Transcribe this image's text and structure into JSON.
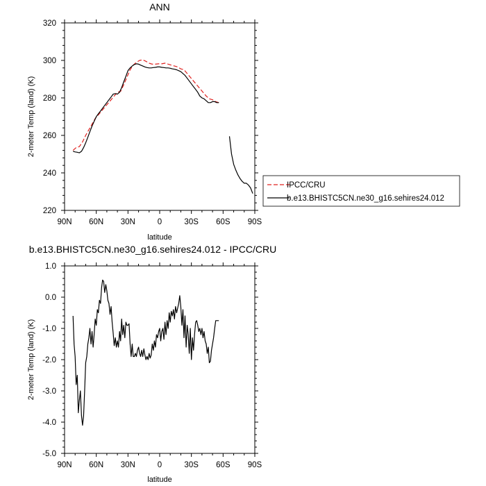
{
  "chart_data": [
    {
      "type": "line",
      "title": "ANN",
      "xlabel": "latitude",
      "ylabel": "2-meter Temp (land) (K)",
      "xlim": [
        90,
        -90
      ],
      "ylim": [
        220,
        320
      ],
      "yticks": [
        "220",
        "240",
        "260",
        "280",
        "300",
        "320"
      ],
      "xticks": [
        "90N",
        "60N",
        "30N",
        "0",
        "30S",
        "60S",
        "90S"
      ],
      "xtick_values": [
        90,
        60,
        30,
        0,
        -30,
        -60,
        -90
      ],
      "ytick_values": [
        220,
        240,
        260,
        280,
        300,
        320
      ],
      "grid": false,
      "legend": "right, outside plot",
      "series": [
        {
          "name": "IPCC/CRU",
          "color": "#e0201e",
          "dash": "dashed",
          "x": [
            82,
            79,
            76,
            73,
            70,
            67,
            64,
            61,
            58,
            55,
            52,
            49,
            46,
            43,
            40,
            37,
            34,
            31,
            28,
            25,
            22,
            19,
            16,
            13,
            10,
            7,
            4,
            1,
            -2,
            -5,
            -8,
            -11,
            -14,
            -17,
            -20,
            -23,
            -26,
            -29,
            -32,
            -35,
            -38,
            -41,
            -44,
            -47,
            -50,
            -53,
            -56
          ],
          "y": [
            252,
            253.5,
            254,
            256.5,
            260,
            263,
            266,
            269,
            271,
            273,
            275,
            277,
            279,
            281,
            283,
            283.5,
            287,
            291,
            295,
            297.5,
            299,
            300,
            300.3,
            299.5,
            298.5,
            298,
            298,
            298.2,
            298.2,
            298.5,
            298,
            297.5,
            297,
            296.5,
            295.5,
            295,
            293,
            291,
            289,
            287,
            285,
            283,
            281,
            279.5,
            279,
            278,
            277.5
          ]
        },
        {
          "name": "b.e13.BHISTC5CN.ne30_g16.sehires24.012",
          "color": "#000000",
          "dash": "solid",
          "x": [
            82,
            80,
            78,
            76,
            74,
            72,
            70,
            68,
            66,
            64,
            62,
            60,
            58,
            56,
            54,
            52,
            50,
            48,
            46,
            44,
            42,
            40,
            38,
            36,
            34,
            32,
            30,
            28,
            26,
            24,
            22,
            20,
            18,
            16,
            14,
            12,
            10,
            8,
            6,
            4,
            2,
            0,
            -2,
            -4,
            -6,
            -8,
            -10,
            -12,
            -14,
            -16,
            -18,
            -20,
            -22,
            -24,
            -26,
            -28,
            -30,
            -32,
            -34,
            -36,
            -38,
            -40,
            -42,
            -44,
            -46,
            -48,
            -50,
            -52,
            -54,
            -56,
            null,
            -66,
            -68,
            -70,
            -72,
            -74,
            -76,
            -78,
            -80,
            -82,
            -84,
            -86,
            -88
          ],
          "y": [
            251.5,
            251.2,
            251,
            250.7,
            251.5,
            253.5,
            256,
            259,
            262,
            265,
            267.5,
            270,
            271.5,
            273,
            274.5,
            276,
            277.5,
            279,
            280.5,
            282,
            282.3,
            282,
            283,
            285.5,
            288.5,
            291.5,
            294.5,
            296,
            297,
            297.8,
            298.2,
            298,
            297.5,
            297,
            296.5,
            296.2,
            296,
            296,
            296.2,
            296.3,
            296.5,
            296.5,
            296.3,
            296.2,
            296,
            296,
            295.8,
            295.5,
            295.3,
            295,
            294.5,
            294,
            293,
            292,
            290.5,
            289,
            287.5,
            286,
            284.5,
            283,
            281,
            280,
            279.5,
            278.5,
            277.5,
            277.5,
            278,
            278,
            277.5,
            277.5,
            null,
            259.5,
            250,
            244.5,
            241.5,
            239,
            237,
            235.5,
            234.5,
            234.5,
            233.5,
            232,
            229
          ]
        }
      ]
    },
    {
      "type": "line",
      "title": "b.e13.BHISTC5CN.ne30_g16.sehires24.012 - IPCC/CRU",
      "xlabel": "latitude",
      "ylabel": "2-meter Temp (land) (K)",
      "xlim": [
        90,
        -90
      ],
      "ylim": [
        -5,
        1
      ],
      "yticks": [
        "-5.0",
        "-4.0",
        "-3.0",
        "-2.0",
        "-1.0",
        "0.0",
        "1.0"
      ],
      "ytick_values": [
        -5,
        -4,
        -3,
        -2,
        -1,
        0,
        1
      ],
      "xticks": [
        "90N",
        "60N",
        "30N",
        "0",
        "30S",
        "60S",
        "90S"
      ],
      "xtick_values": [
        90,
        60,
        30,
        0,
        -30,
        -60,
        -90
      ],
      "grid": false,
      "series": [
        {
          "color": "#000000",
          "dash": "solid",
          "x": [
            82,
            81,
            80,
            79,
            78,
            77,
            76,
            75,
            74,
            73,
            72,
            71,
            70,
            69,
            68,
            67,
            66,
            65,
            64,
            63,
            62,
            61,
            60,
            59,
            58,
            57,
            56,
            55,
            54,
            53,
            52,
            51,
            50,
            49,
            48,
            47,
            46,
            45,
            44,
            43,
            42,
            41,
            40,
            39,
            38,
            37,
            36,
            35,
            34,
            33,
            32,
            31,
            30,
            29,
            28,
            27,
            26,
            25,
            24,
            23,
            22,
            21,
            20,
            19,
            18,
            17,
            16,
            15,
            14,
            13,
            12,
            11,
            10,
            9,
            8,
            7,
            6,
            5,
            4,
            3,
            2,
            1,
            0,
            -1,
            -2,
            -3,
            -4,
            -5,
            -6,
            -7,
            -8,
            -9,
            -10,
            -11,
            -12,
            -13,
            -14,
            -15,
            -16,
            -17,
            -18,
            -19,
            -20,
            -21,
            -22,
            -23,
            -24,
            -25,
            -26,
            -27,
            -28,
            -29,
            -30,
            -31,
            -32,
            -33,
            -34,
            -35,
            -36,
            -37,
            -38,
            -39,
            -40,
            -41,
            -42,
            -43,
            -44,
            -45,
            -46,
            -47,
            -48,
            -49,
            -50,
            -51,
            -52,
            -53,
            -54,
            -55,
            -56
          ],
          "y": [
            -0.6,
            -1.5,
            -1.9,
            -2.8,
            -2.5,
            -3.7,
            -3.3,
            -3.0,
            -3.8,
            -4.1,
            -3.8,
            -3.0,
            -2.1,
            -1.9,
            -1.5,
            -1.3,
            -1.0,
            -1.5,
            -1.1,
            -1.6,
            -1.2,
            -0.7,
            -0.9,
            -0.4,
            -0.5,
            -0.1,
            -0.2,
            0.3,
            0.55,
            0.5,
            0.15,
            0.4,
            0.2,
            -0.1,
            -0.2,
            -0.55,
            -0.3,
            -0.8,
            -1.15,
            -1.55,
            -1.3,
            -1.6,
            -1.4,
            -1.6,
            -1.1,
            -1.4,
            -0.7,
            -1.2,
            -0.9,
            -1.3,
            -0.8,
            -0.9,
            -0.9,
            -0.85,
            -1.5,
            -1.9,
            -1.5,
            -1.9,
            -1.9,
            -1.8,
            -1.9,
            -1.7,
            -1.6,
            -1.8,
            -1.9,
            -1.7,
            -1.9,
            -1.65,
            -1.85,
            -2.0,
            -1.9,
            -2.0,
            -1.8,
            -1.95,
            -1.85,
            -1.5,
            -1.7,
            -1.4,
            -1.6,
            -1.2,
            -1.3,
            -1.1,
            -1.0,
            -1.4,
            -1.1,
            -1.0,
            -1.35,
            -0.8,
            -1.2,
            -0.75,
            -1.0,
            -0.5,
            -0.8,
            -0.45,
            -0.6,
            -0.4,
            -0.7,
            -0.3,
            -0.5,
            -0.35,
            -0.2,
            0.05,
            -0.3,
            -0.9,
            -0.4,
            -1.3,
            -0.6,
            -1.6,
            -0.9,
            -1.2,
            -1.8,
            -1.0,
            -2.0,
            -1.3,
            -1.7,
            -1.2,
            -0.8,
            -0.75,
            -0.9,
            -1.1,
            -1.0,
            -1.2,
            -1.0,
            -1.3,
            -1.1,
            -1.4,
            -1.5,
            -1.8,
            -1.6,
            -2.1,
            -2.05,
            -1.7,
            -1.5,
            -1.3,
            -1.0,
            -0.75,
            -0.75,
            -0.75,
            -0.75
          ]
        }
      ]
    }
  ]
}
